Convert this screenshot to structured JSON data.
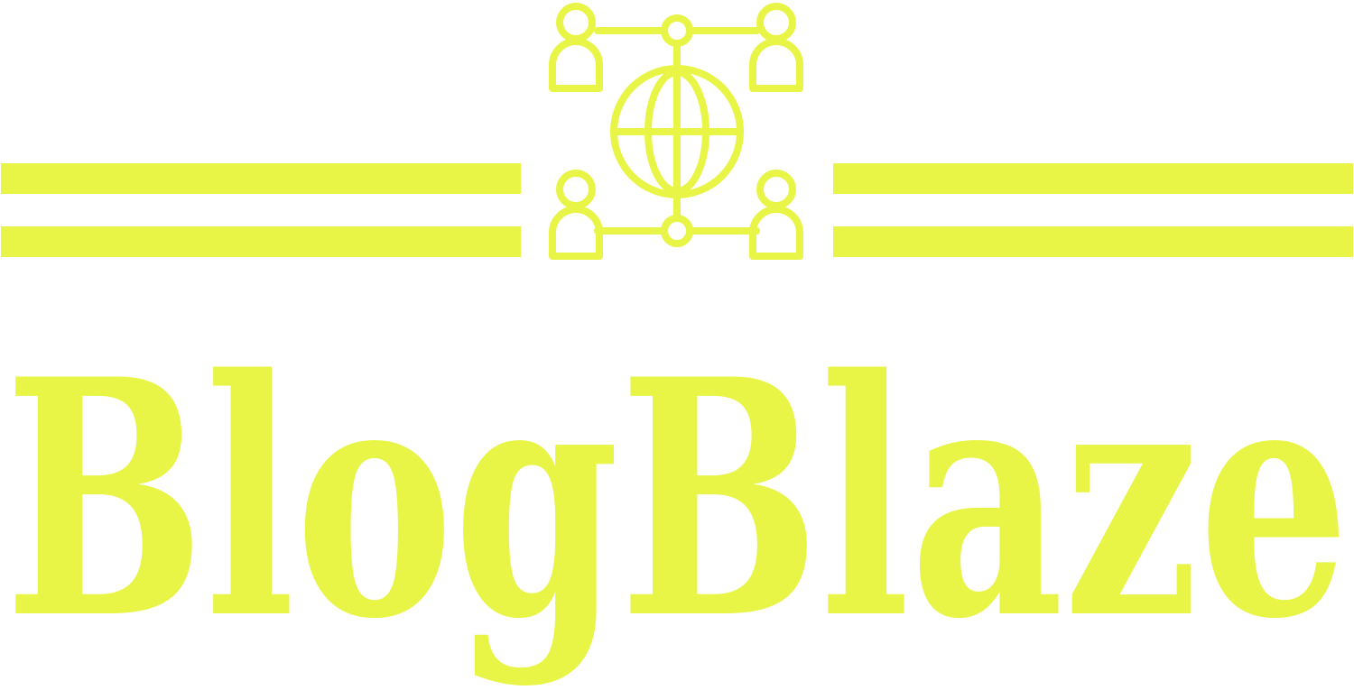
{
  "brand": {
    "name": "BlogBlaze",
    "color": "#e8f546"
  },
  "icons": {
    "emblem": "globe-network-people-icon"
  }
}
